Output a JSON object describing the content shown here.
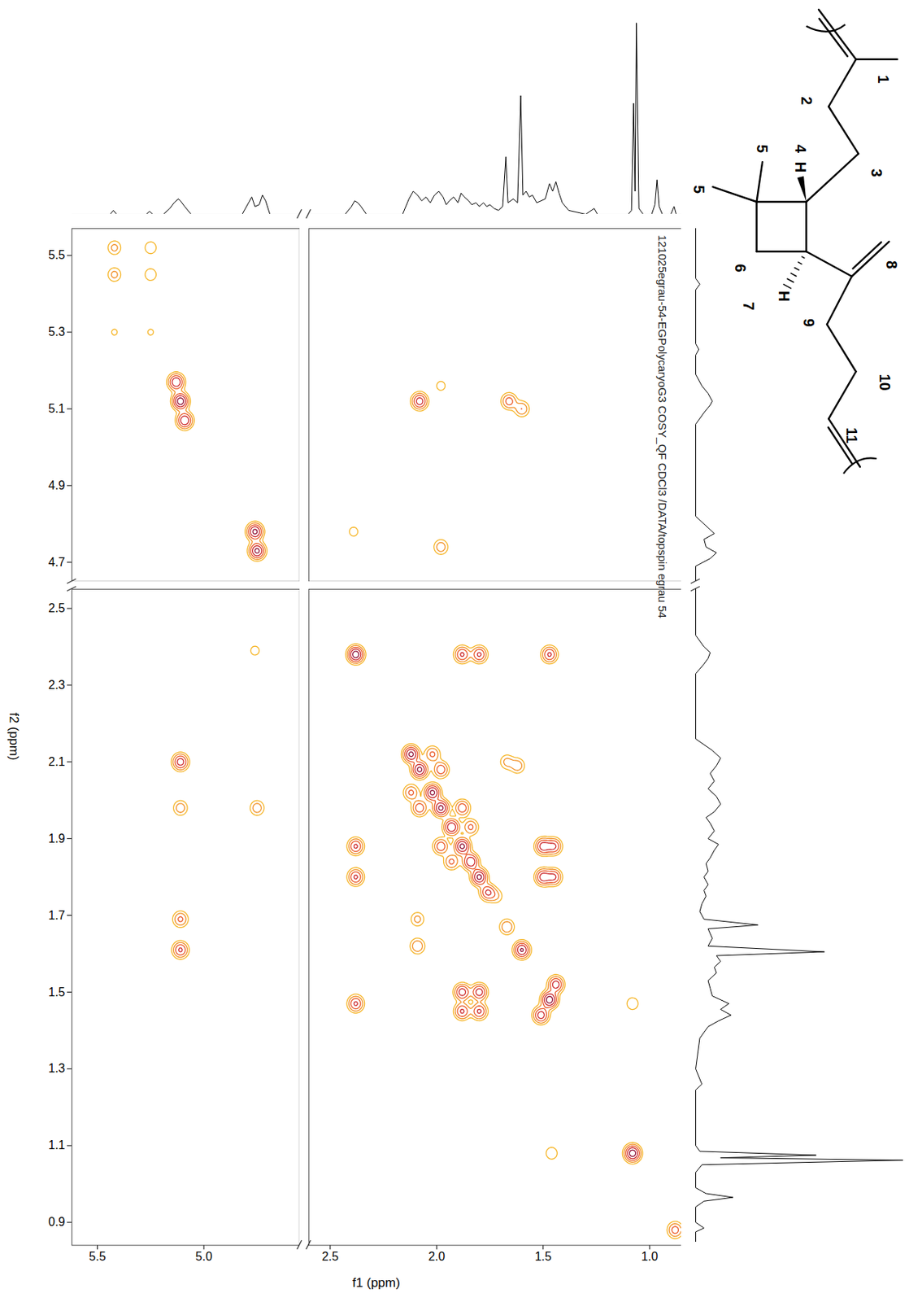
{
  "chart_data": {
    "type": "contour",
    "title": "121025egrau-54-EGPolycaryoG3 COSY_QF CDCl3 /DATA/topspin egrau 54",
    "x_label": "f1 (ppm)",
    "y_label": "f2 (ppm)",
    "xlim": [
      [
        5.62,
        4.55
      ],
      [
        2.6,
        0.85
      ]
    ],
    "xticks": [
      [
        5.5,
        {
          "value": 5,
          "label": "5.0"
        }
      ],
      [
        2.5,
        {
          "value": 2,
          "label": "2.0"
        },
        1.5,
        {
          "value": 1,
          "label": "1.0"
        }
      ]
    ],
    "ylim": [
      [
        4.65,
        5.57
      ],
      [
        0.84,
        2.55
      ]
    ],
    "yticks": [
      [
        4.7,
        4.9,
        5.1,
        5.3,
        5.5
      ],
      [
        0.9,
        1.1,
        1.3,
        1.5,
        1.7,
        1.9,
        2.1,
        2.3,
        2.5
      ]
    ],
    "grid": false,
    "cross_peaks": {
      "f1": [
        5.42,
        5.42,
        5.25,
        5.25,
        5.42,
        5.25,
        5.13,
        5.11,
        5.09,
        4.76,
        4.75,
        2.08,
        1.66,
        1.6,
        1.98,
        2.39,
        1.98,
        5.11,
        5.11,
        5.11,
        5.11,
        4.76,
        4.75,
        2.38,
        1.88,
        1.8,
        1.47,
        2.38,
        2.38,
        2.38,
        2.12,
        2.08,
        2.02,
        1.98,
        1.93,
        1.88,
        1.84,
        1.8,
        1.76,
        2.08,
        1.98,
        2.12,
        2.02,
        1.93,
        1.84,
        1.98,
        1.88,
        1.88,
        1.8,
        1.88,
        1.8,
        1.5,
        1.5,
        1.45,
        1.45,
        1.47,
        1.44,
        1.51,
        1.46,
        1.08,
        1.08,
        0.88,
        1.6,
        1.67,
        1.62,
        2.09,
        2.09,
        1.67,
        1.72
      ],
      "f2": [
        5.52,
        5.45,
        5.52,
        5.45,
        5.3,
        5.3,
        5.17,
        5.12,
        5.07,
        4.78,
        4.73,
        5.12,
        5.12,
        5.1,
        5.16,
        4.78,
        4.74,
        2.1,
        1.98,
        1.69,
        1.61,
        2.39,
        1.98,
        2.38,
        2.38,
        2.38,
        2.38,
        1.88,
        1.8,
        1.47,
        2.12,
        2.08,
        2.02,
        1.98,
        1.93,
        1.88,
        1.84,
        1.8,
        1.76,
        1.98,
        2.08,
        2.02,
        2.12,
        1.84,
        1.93,
        1.88,
        1.98,
        1.5,
        1.5,
        1.45,
        1.45,
        1.88,
        1.8,
        1.88,
        1.8,
        1.48,
        1.52,
        1.44,
        1.08,
        1.47,
        1.08,
        0.88,
        1.61,
        1.67,
        2.09,
        1.62,
        1.69,
        2.1,
        1.75
      ],
      "intensity": [
        0.25,
        0.25,
        0.2,
        0.2,
        0.12,
        0.12,
        0.8,
        1,
        0.8,
        0.9,
        0.9,
        0.7,
        0.45,
        0.35,
        0.15,
        0.15,
        0.3,
        0.7,
        0.3,
        0.4,
        0.6,
        0.15,
        0.3,
        1,
        0.6,
        0.6,
        0.6,
        0.6,
        0.6,
        0.6,
        0.9,
        0.9,
        0.9,
        0.9,
        0.8,
        0.9,
        0.8,
        0.9,
        0.6,
        0.5,
        0.5,
        0.4,
        0.4,
        0.4,
        0.4,
        0.5,
        0.5,
        0.7,
        0.7,
        0.6,
        0.6,
        0.7,
        0.7,
        0.6,
        0.6,
        1,
        0.7,
        0.7,
        0.2,
        0.2,
        1,
        0.45,
        0.85,
        0.35,
        0.3,
        0.35,
        0.25,
        0.25,
        0.2
      ]
    },
    "spectrum_1d": {
      "ppm": [
        5.62,
        5.44,
        5.425,
        5.41,
        5.27,
        5.255,
        5.24,
        5.19,
        5.16,
        5.14,
        5.12,
        5.11,
        5.09,
        5.06,
        4.82,
        4.79,
        4.775,
        4.76,
        4.74,
        4.725,
        4.71,
        4.69,
        4.55,
        2.6,
        2.43,
        2.4,
        2.385,
        2.37,
        2.355,
        2.33,
        2.16,
        2.13,
        2.11,
        2.09,
        2.07,
        2.05,
        2.03,
        2.01,
        1.99,
        1.97,
        1.955,
        1.94,
        1.92,
        1.9,
        1.885,
        1.87,
        1.85,
        1.835,
        1.815,
        1.8,
        1.78,
        1.765,
        1.75,
        1.73,
        1.71,
        1.69,
        1.675,
        1.665,
        1.64,
        1.62,
        1.605,
        1.595,
        1.58,
        1.565,
        1.55,
        1.53,
        1.51,
        1.49,
        1.47,
        1.455,
        1.44,
        1.425,
        1.41,
        1.38,
        1.3,
        1.26,
        1.245,
        1.1,
        1.085,
        1.075,
        1.068,
        1.062,
        1.05,
        1.03,
        0.99,
        0.975,
        0.965,
        0.955,
        0.94,
        0.9,
        0.885,
        0.875,
        0.85
      ],
      "intensity": [
        0,
        0,
        2,
        0,
        0,
        1.5,
        0,
        0,
        3,
        6,
        8,
        7,
        4,
        0,
        0,
        6,
        9,
        4,
        5,
        10,
        7,
        0,
        0,
        0,
        0,
        4,
        7,
        6,
        4,
        0,
        0,
        8,
        12,
        10,
        7,
        9,
        6,
        10,
        12,
        9,
        5,
        7,
        9,
        6,
        11,
        9,
        7,
        5,
        6,
        4,
        6,
        4,
        5,
        3,
        2,
        4,
        30,
        6,
        8,
        6,
        62,
        10,
        12,
        9,
        10,
        6,
        7,
        8,
        16,
        12,
        17,
        11,
        6,
        2,
        0,
        3,
        0,
        0,
        2,
        58,
        12,
        100,
        3,
        0,
        0,
        5,
        18,
        4,
        0,
        0,
        4,
        0,
        0
      ]
    }
  },
  "structure": {
    "labels": [
      "1",
      "2",
      "3",
      "4",
      "H",
      "5",
      "5",
      "6",
      "H",
      "7",
      "8",
      "9",
      "10",
      "11"
    ]
  }
}
